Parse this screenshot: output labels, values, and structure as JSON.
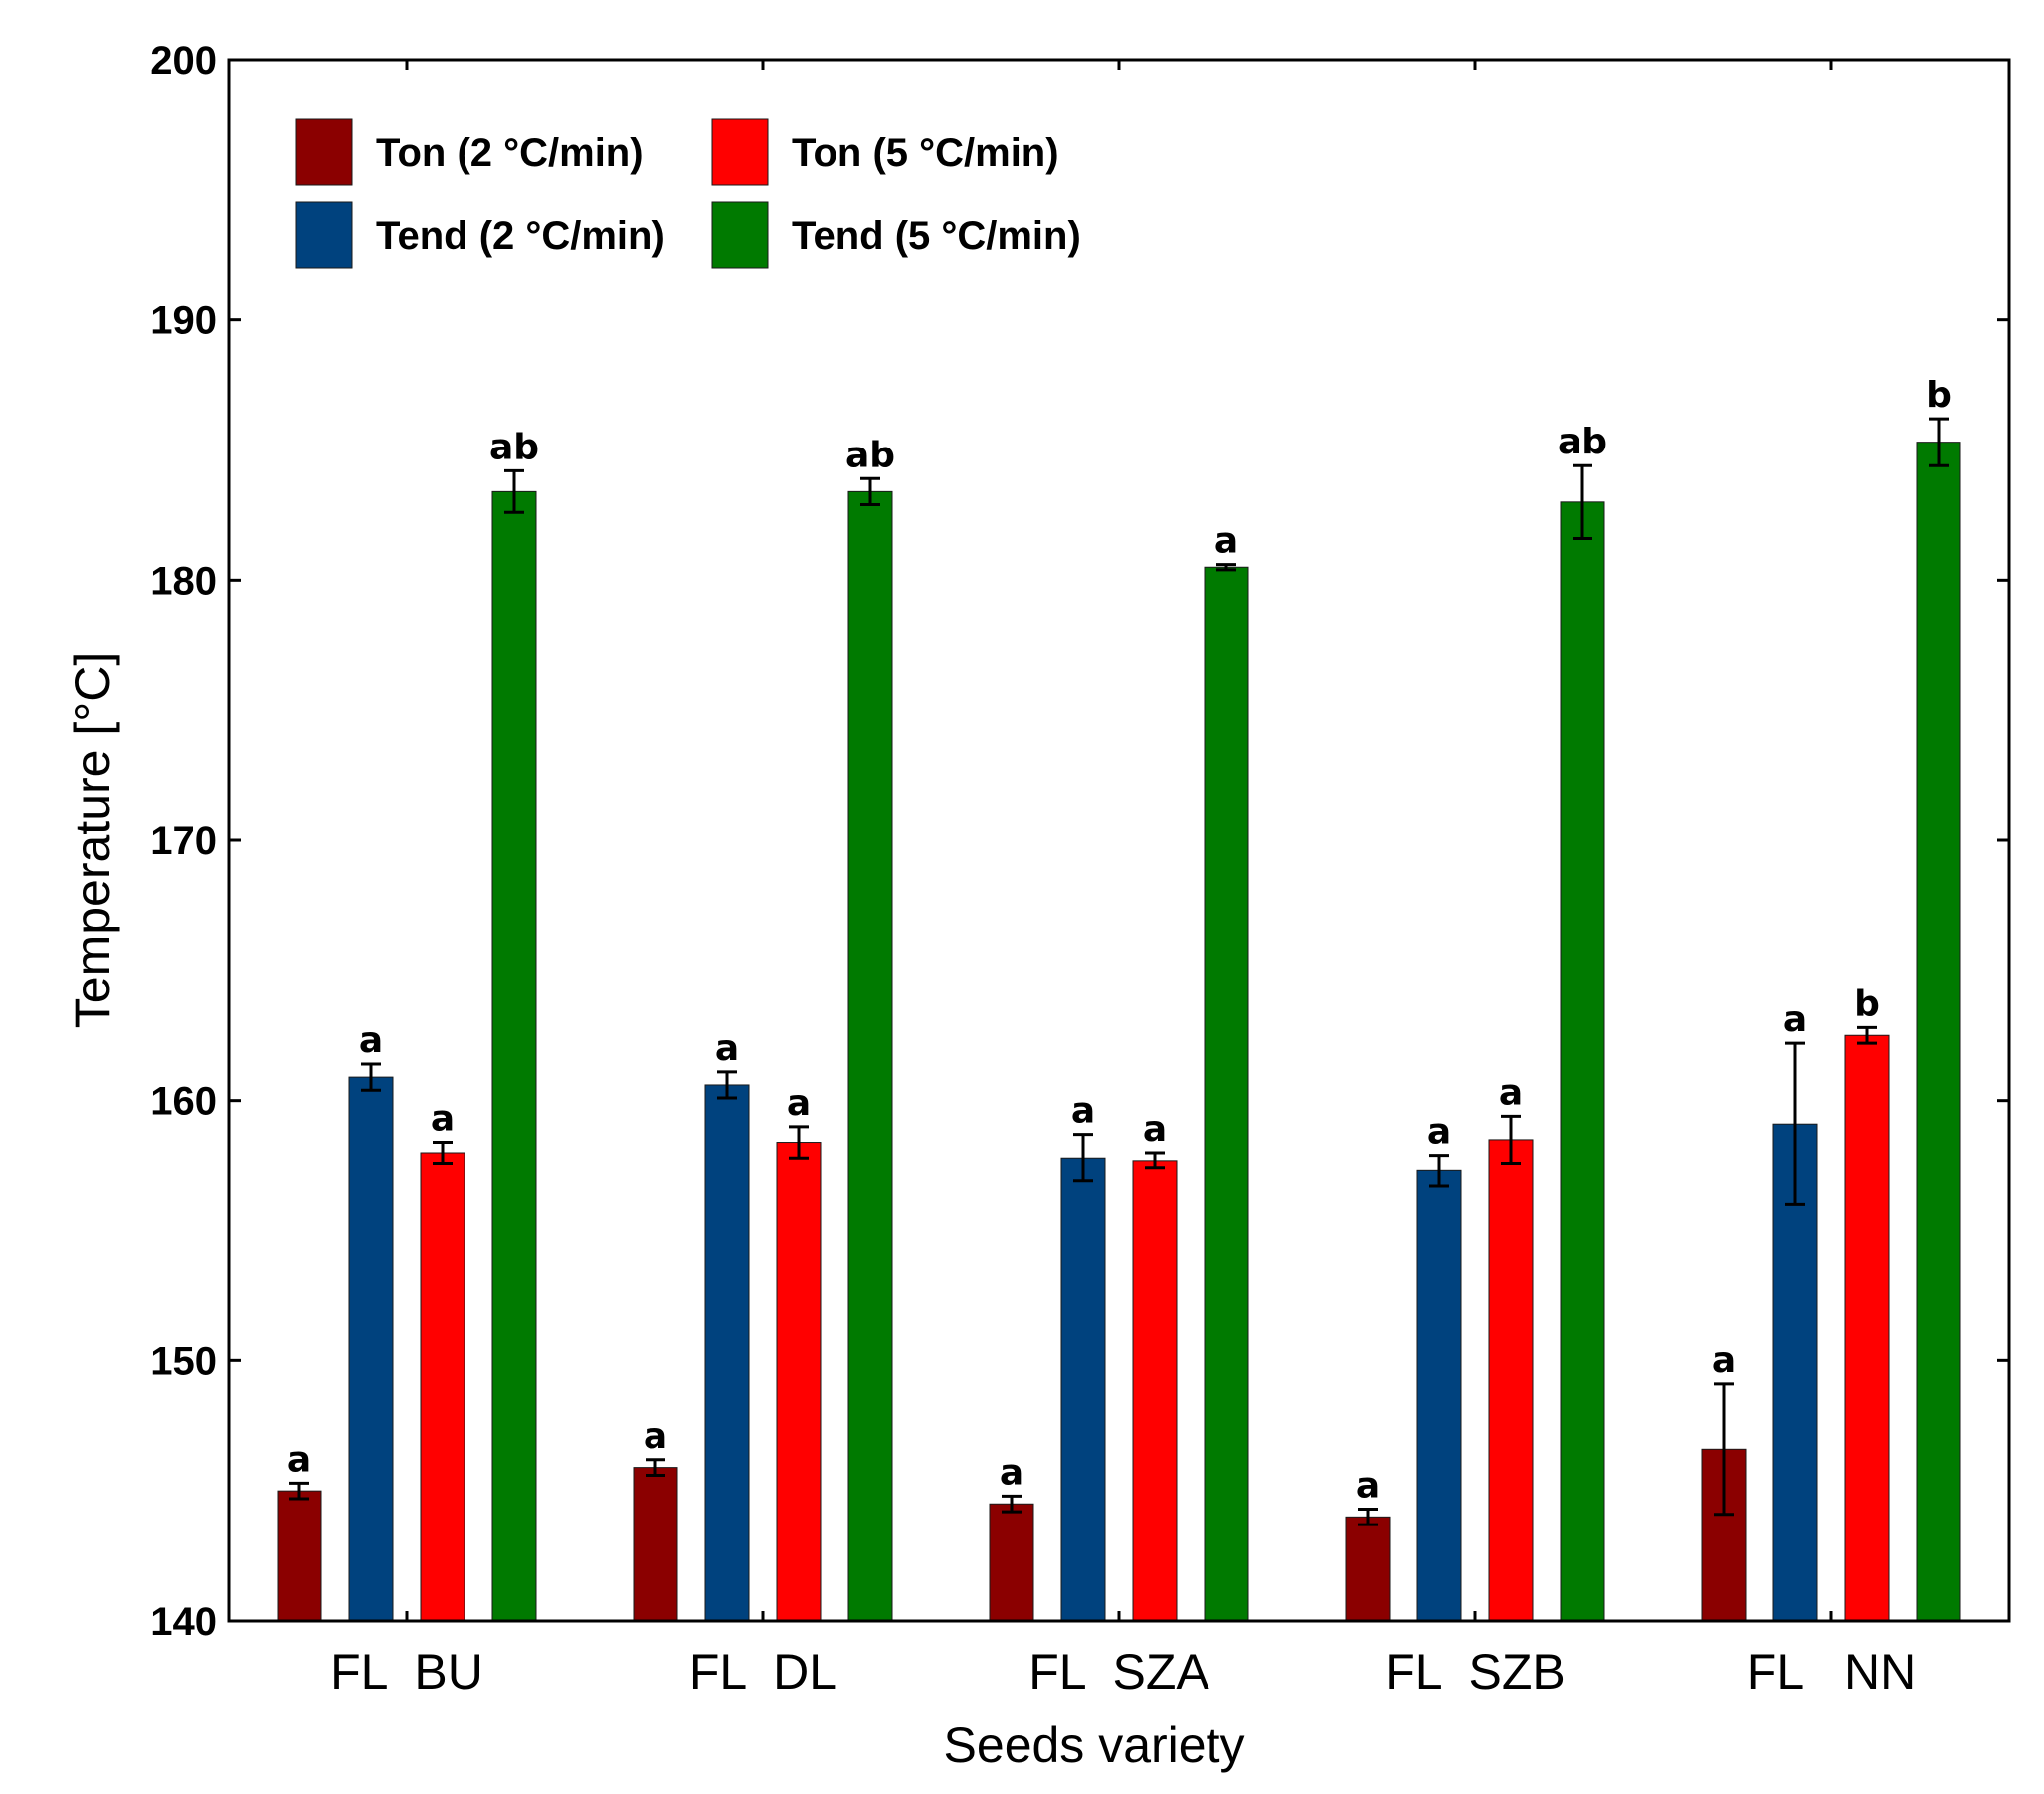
{
  "chart_data": {
    "type": "bar",
    "title": "",
    "xlabel": "Seeds variety",
    "ylabel": "Temperature [°C]",
    "ylim": [
      140,
      200
    ],
    "yticks": [
      140,
      150,
      160,
      170,
      180,
      190,
      200
    ],
    "grid": false,
    "legend_position": "top-left",
    "categories": [
      "FL  BU",
      "FL  DL",
      "FL  SZA",
      "FL  SZB",
      "FL   NN"
    ],
    "series": [
      {
        "name": "Ton (2 °C/min)",
        "color": "#8b0000",
        "values": [
          145.0,
          145.9,
          144.5,
          144.0,
          146.6
        ],
        "errors": [
          0.3,
          0.3,
          0.3,
          0.3,
          2.5
        ],
        "labels": [
          "a",
          "a",
          "a",
          "a",
          "a"
        ]
      },
      {
        "name": "Tend (2 °C/min)",
        "color": "#00427e",
        "values": [
          160.9,
          160.6,
          157.8,
          157.3,
          159.1
        ],
        "errors": [
          0.5,
          0.5,
          0.9,
          0.6,
          3.1
        ],
        "labels": [
          "a",
          "a",
          "a",
          "a",
          "a"
        ]
      },
      {
        "name": "Ton (5 °C/min)",
        "color": "#ff0000",
        "values": [
          158.0,
          158.4,
          157.7,
          158.5,
          162.5
        ],
        "errors": [
          0.4,
          0.6,
          0.3,
          0.9,
          0.3
        ],
        "labels": [
          "a",
          "a",
          "a",
          "a",
          "b"
        ]
      },
      {
        "name": "Tend (5 °C/min)",
        "color": "#007a00",
        "values": [
          183.4,
          183.4,
          180.5,
          183.0,
          185.3
        ],
        "errors": [
          0.8,
          0.5,
          0.1,
          1.4,
          0.9
        ],
        "labels": [
          "ab",
          "ab",
          "a",
          "ab",
          "b"
        ]
      }
    ]
  }
}
